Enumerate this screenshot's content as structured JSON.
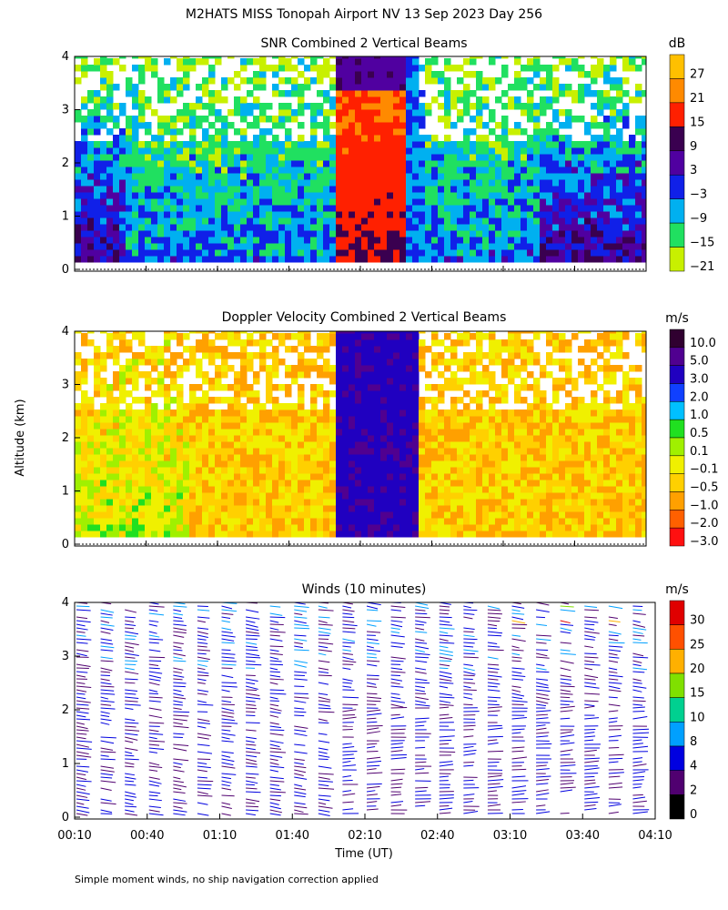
{
  "page": {
    "title": "M2HATS MISS Tonopah Airport NV  13 Sep 2023 Day 256",
    "y_axis_label": "Altitude (km)",
    "x_axis_label": "Time (UT)",
    "footnote": "Simple moment winds, no ship navigation correction applied"
  },
  "chart_data": [
    {
      "type": "heatmap",
      "title": "SNR Combined 2 Vertical Beams",
      "xlabel": "",
      "ylabel": "Altitude (km)",
      "x_range": [
        "00:10",
        "04:10"
      ],
      "ylim": [
        0,
        4
      ],
      "y_ticks": [
        "0",
        "1",
        "2",
        "3",
        "4"
      ],
      "colorbar": {
        "unit": "dB",
        "tick_labels": [
          "27",
          "21",
          "15",
          "9",
          "3",
          "−3",
          "−9",
          "−15",
          "−21"
        ],
        "colors": [
          "#ffc000",
          "#ff8a00",
          "#ff2000",
          "#3a0050",
          "#5000a0",
          "#1020e8",
          "#00b0f0",
          "#20e060",
          "#c8f000"
        ]
      }
    },
    {
      "type": "heatmap",
      "title": "Doppler Velocity Combined 2 Vertical Beams",
      "xlabel": "",
      "ylabel": "Altitude (km)",
      "x_range": [
        "00:10",
        "04:10"
      ],
      "ylim": [
        0,
        4
      ],
      "y_ticks": [
        "0",
        "1",
        "2",
        "3",
        "4"
      ],
      "colorbar": {
        "unit": "m/s",
        "tick_labels": [
          "10.0",
          "5.0",
          "3.0",
          "2.0",
          "1.0",
          "0.5",
          "0.1",
          "−0.1",
          "−0.5",
          "−1.0",
          "−2.0",
          "−3.0"
        ],
        "colors": [
          "#300030",
          "#500090",
          "#2000c0",
          "#1040ff",
          "#00c0ff",
          "#20e020",
          "#a0f000",
          "#f0f000",
          "#ffd000",
          "#ffa000",
          "#ff6000",
          "#ff1010"
        ]
      }
    },
    {
      "type": "scatter",
      "title": "Winds (10 minutes)",
      "xlabel": "Time (UT)",
      "ylabel": "Altitude (km)",
      "x_range": [
        "00:10",
        "04:10"
      ],
      "x_ticks": [
        "00:10",
        "00:40",
        "01:10",
        "01:40",
        "02:10",
        "02:40",
        "03:10",
        "03:40",
        "04:10"
      ],
      "ylim": [
        0,
        4
      ],
      "y_ticks": [
        "0",
        "1",
        "2",
        "3",
        "4"
      ],
      "colorbar": {
        "unit": "m/s",
        "tick_labels": [
          "30",
          "25",
          "20",
          "15",
          "10",
          "8",
          "4",
          "2",
          "0"
        ],
        "colors": [
          "#e00000",
          "#ff5000",
          "#ffb000",
          "#80e000",
          "#00d090",
          "#00a0ff",
          "#0000e0",
          "#500070",
          "#000000"
        ]
      }
    }
  ]
}
